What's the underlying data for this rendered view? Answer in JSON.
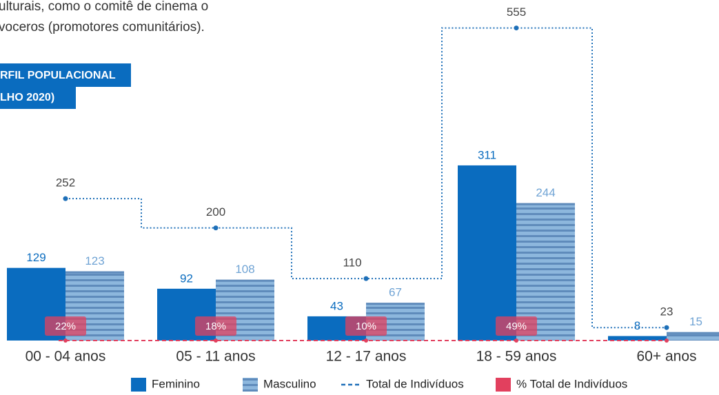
{
  "document": {
    "text_lines": [
      "ulturais, como o comitê de cinema o",
      "voceros (promotores comunitários)."
    ],
    "header_box": [
      "RFIL POPULACIONAL",
      "LHO 2020)"
    ]
  },
  "chart_data": {
    "type": "bar",
    "categories": [
      "00 - 04 anos",
      "05 - 11 anos",
      "12 - 17 anos",
      "18 - 59 anos",
      "60+ anos"
    ],
    "series": [
      {
        "name": "Feminino",
        "color": "#0a6cbf",
        "values": [
          129,
          92,
          43,
          311,
          8
        ]
      },
      {
        "name": "Masculino",
        "color": "#8db7dd",
        "values": [
          123,
          108,
          67,
          244,
          15
        ]
      },
      {
        "name": "Total de Indivíduos",
        "color": "#1d6fb8",
        "type": "line",
        "values": [
          252,
          200,
          110,
          555,
          23
        ]
      },
      {
        "name": "% Total de Indivíduos",
        "color": "#e2405e",
        "values": [
          22,
          18,
          10,
          49,
          null
        ],
        "value_labels": [
          "22%",
          "18%",
          "10%",
          "49%",
          null
        ]
      }
    ]
  }
}
